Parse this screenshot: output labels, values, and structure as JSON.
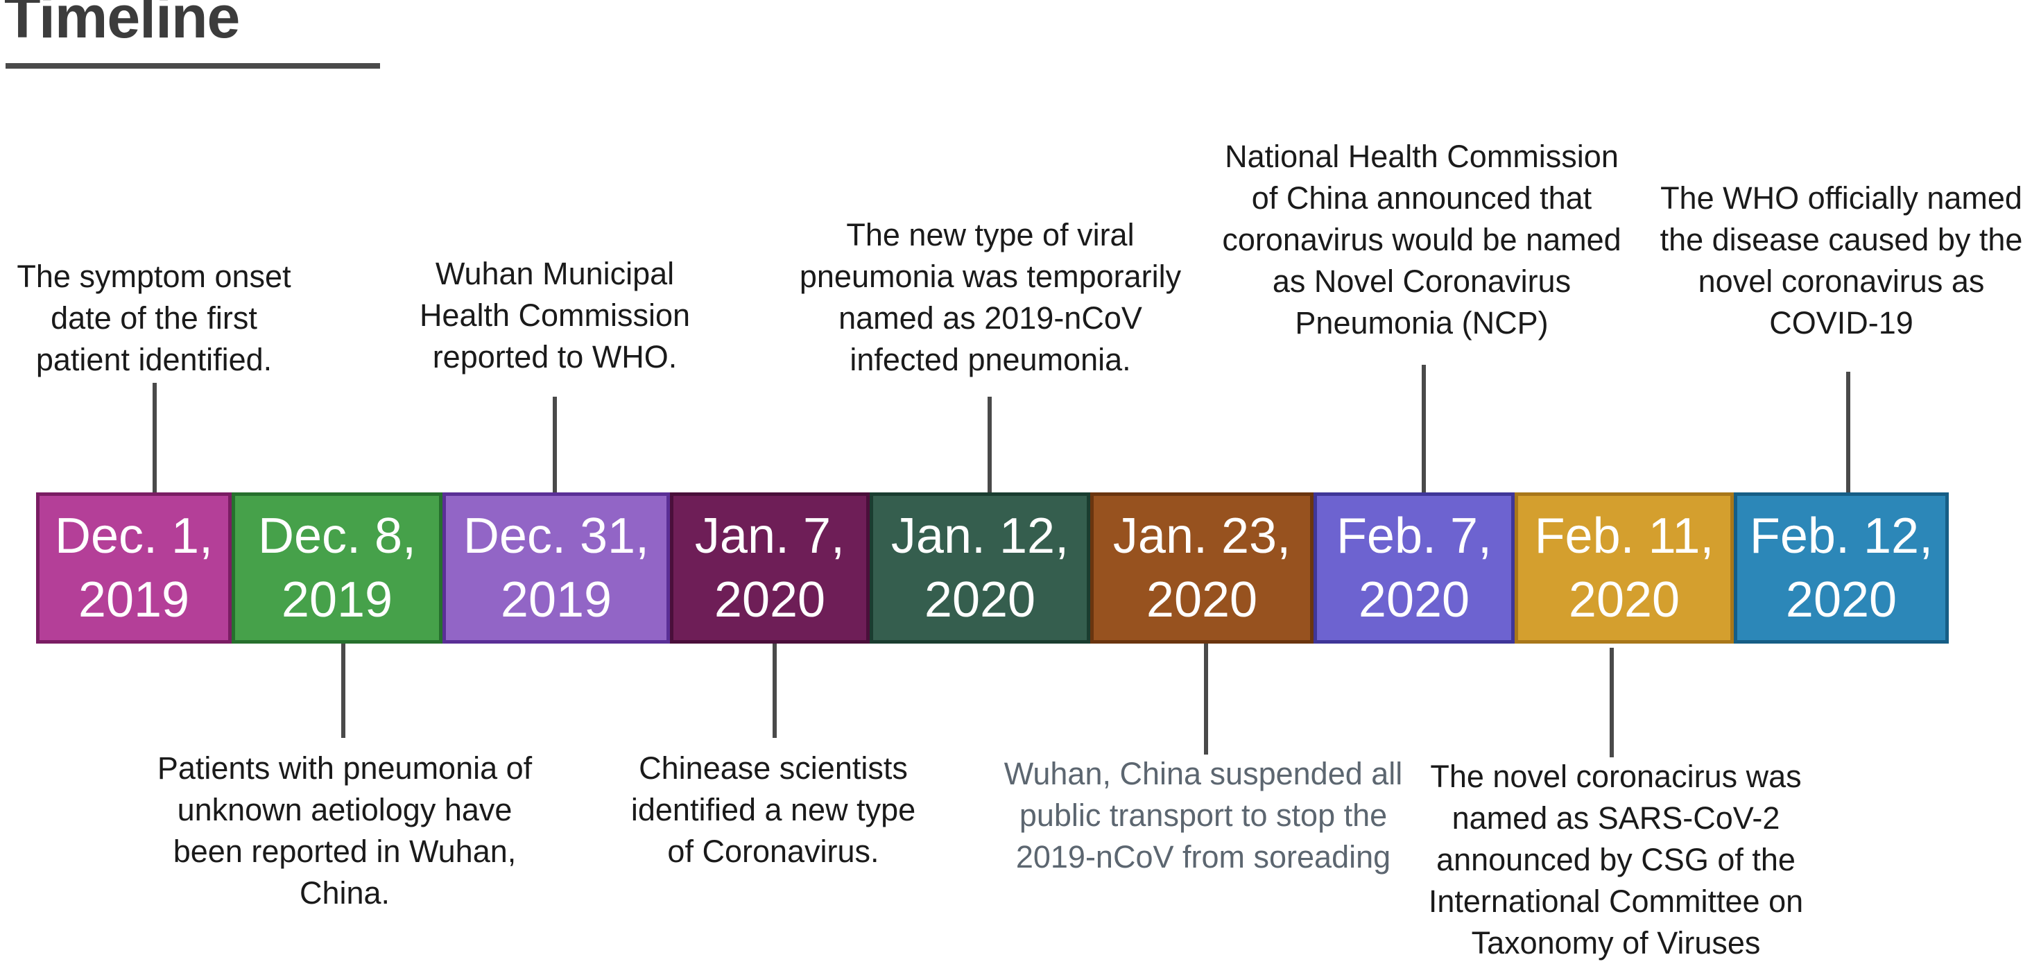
{
  "title": "Timeline",
  "events": [
    {
      "date": "Dec. 1,\n2019",
      "note": "The symptom onset\ndate of the first\npatient identified.",
      "position": "above",
      "color": "#b43f98",
      "border": "#7a1d63"
    },
    {
      "date": "Dec. 8,\n2019",
      "note": "Patients with pneumonia of\nunknown aetiology have\nbeen reported in Wuhan,\nChina.",
      "position": "below",
      "color": "#46a14a",
      "border": "#26702d"
    },
    {
      "date": "Dec. 31,\n2019",
      "note": "Wuhan Municipal\nHealth Commission\nreported to WHO.",
      "position": "above",
      "color": "#9265c6",
      "border": "#5a2f96"
    },
    {
      "date": "Jan. 7,\n2020",
      "note": "Chinease scientists\nidentified a new type\nof Coronavirus.",
      "position": "below",
      "color": "#6e1e57",
      "border": "#4a0f3a"
    },
    {
      "date": "Jan. 12,\n2020",
      "note": "The new type of viral\npneumonia was temporarily\nnamed as 2019-nCoV\ninfected pneumonia.",
      "position": "above",
      "color": "#355e4e",
      "border": "#1a3d30"
    },
    {
      "date": "Jan. 23,\n2020",
      "note": "Wuhan, China suspended all\npublic transport to stop the\n2019-nCoV from soreading",
      "position": "below",
      "color": "#97521f",
      "border": "#6a350f"
    },
    {
      "date": "Feb. 7,\n2020",
      "note": "National Health Commission\nof China announced that\ncoronavirus would be named\nas Novel Coronavirus\nPneumonia (NCP)",
      "position": "above",
      "color": "#6d63d0",
      "border": "#3f3698"
    },
    {
      "date": "Feb. 11,\n2020",
      "note": "The novel coronacirus was\nnamed as SARS-CoV-2\nannounced by CSG of the\nInternational Committee on\nTaxonomy of Viruses",
      "position": "below",
      "color": "#d49f2e",
      "border": "#a8771a"
    },
    {
      "date": "Feb. 12,\n2020",
      "note": "The WHO officially named\nthe disease caused by the\nnovel coronavirus as\nCOVID-19",
      "position": "above",
      "color": "#2c87b8",
      "border": "#165e86"
    }
  ]
}
